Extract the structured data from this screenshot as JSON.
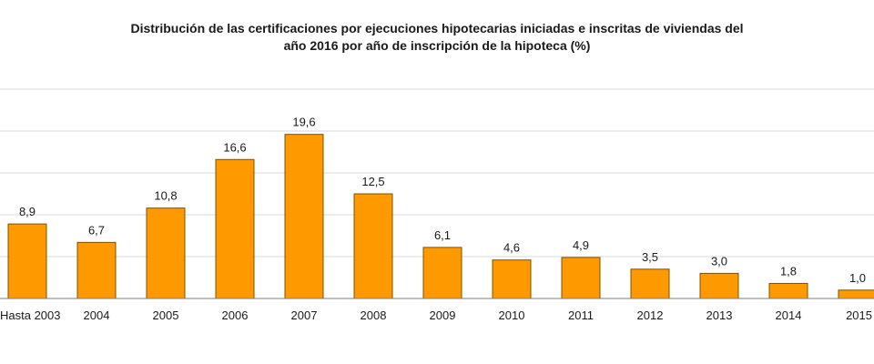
{
  "chart_data": {
    "type": "bar",
    "title_line1": "Distribución de las certificaciones por ejecuciones hipotecarias iniciadas e inscritas de viviendas del",
    "title_line2": "año 2016 por año de inscripción de la hipoteca (%)",
    "xlabel": "",
    "ylabel": "",
    "categories": [
      "Hasta 2003",
      "2004",
      "2005",
      "2006",
      "2007",
      "2008",
      "2009",
      "2010",
      "2011",
      "2012",
      "2013",
      "2014",
      "2015"
    ],
    "values": [
      8.9,
      6.7,
      10.8,
      16.6,
      19.6,
      12.5,
      6.1,
      4.6,
      4.9,
      3.5,
      3.0,
      1.8,
      1.0
    ],
    "value_labels": [
      "8,9",
      "6,7",
      "10,8",
      "16,6",
      "19,6",
      "12,5",
      "6,1",
      "4,6",
      "4,9",
      "3,5",
      "3,0",
      "1,8",
      "1,0"
    ],
    "ylim": [
      0,
      25
    ],
    "y_gridlines": [
      5,
      10,
      15,
      20,
      25
    ],
    "grid": true,
    "legend": "none",
    "bar_color": "#ff9900"
  }
}
